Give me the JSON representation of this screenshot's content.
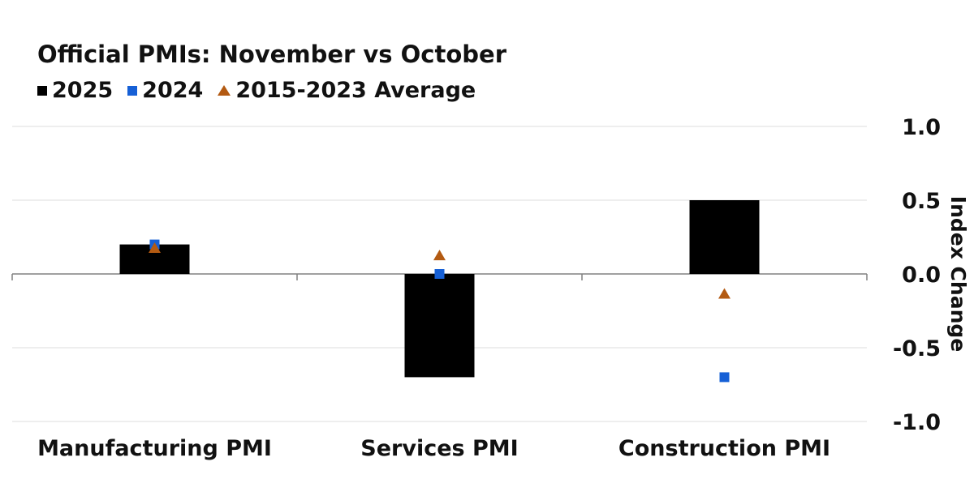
{
  "chart_data": {
    "type": "bar",
    "title": "Official PMIs: November vs October",
    "ylabel": "Index Change",
    "xlabel": "",
    "categories": [
      "Manufacturing PMI",
      "Services PMI",
      "Construction PMI"
    ],
    "ylim": [
      -1.0,
      1.0
    ],
    "yticks": [
      1.0,
      0.5,
      0.0,
      -0.5,
      -1.0
    ],
    "ytick_labels": [
      "1.0",
      "0.5",
      "0.0",
      "-0.5",
      "-1.0"
    ],
    "grid": true,
    "y_axis_side": "right",
    "legend_position": "top-left",
    "series": [
      {
        "name": "2025",
        "kind": "bar",
        "marker": "square",
        "color": "#000000",
        "values": [
          0.2,
          -0.7,
          0.5
        ]
      },
      {
        "name": "2024",
        "kind": "point",
        "marker": "square",
        "color": "#1660D6",
        "values": [
          0.2,
          0.0,
          -0.7
        ]
      },
      {
        "name": "2015-2023 Average",
        "kind": "point",
        "marker": "triangle",
        "color": "#B35A12",
        "values": [
          0.17,
          0.12,
          -0.14
        ]
      }
    ]
  }
}
